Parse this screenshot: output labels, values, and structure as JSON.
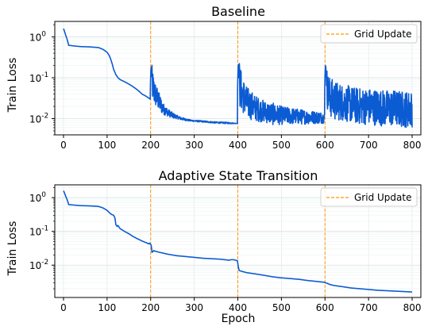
{
  "figure": {
    "background": "#ffffff",
    "line_color": "#0b5bd3",
    "grid_update_color": "#ff9900"
  },
  "chart_data": [
    {
      "type": "line",
      "title": "Baseline",
      "xlabel": "",
      "ylabel": "Train Loss",
      "xlim": [
        -20,
        820
      ],
      "ylim": [
        0.004,
        2.4
      ],
      "yscale": "log",
      "xticks": [
        0,
        100,
        200,
        300,
        400,
        500,
        600,
        700,
        800
      ],
      "xtick_labels": [
        "0",
        "100",
        "200",
        "300",
        "400",
        "500",
        "600",
        "700",
        "800"
      ],
      "yticks": [
        1,
        0.1,
        0.01
      ],
      "ytick_labels": [
        "10^0",
        "10^-1",
        "10^-2"
      ],
      "grid": true,
      "legend": {
        "position": "upper right",
        "entries": [
          "Grid Update"
        ]
      },
      "vlines": [
        200,
        400,
        600
      ],
      "series": [
        {
          "x": [
            0,
            5,
            10,
            12,
            15,
            25,
            40,
            60,
            80,
            90,
            100,
            105,
            110,
            115,
            120,
            125,
            130,
            135,
            140,
            150,
            160,
            170,
            180,
            190,
            199,
            201,
            203,
            205,
            207,
            210,
            215,
            220,
            225,
            230,
            240,
            250,
            260,
            270,
            280,
            290,
            300,
            320,
            350,
            380,
            399,
            401,
            405,
            410,
            420,
            440,
            460,
            480,
            500,
            550,
            599,
            601,
            605,
            610,
            620,
            640,
            660,
            680,
            700,
            720,
            740,
            760,
            780,
            800
          ],
          "y": [
            1.6,
            1.1,
            0.75,
            0.62,
            0.62,
            0.6,
            0.58,
            0.57,
            0.55,
            0.5,
            0.42,
            0.35,
            0.25,
            0.16,
            0.12,
            0.1,
            0.09,
            0.085,
            0.08,
            0.07,
            0.06,
            0.05,
            0.04,
            0.035,
            0.03,
            0.18,
            0.08,
            0.06,
            0.05,
            0.04,
            0.032,
            0.025,
            0.02,
            0.017,
            0.014,
            0.012,
            0.011,
            0.01,
            0.0095,
            0.009,
            0.0088,
            0.0085,
            0.008,
            0.0078,
            0.0076,
            0.2,
            0.06,
            0.04,
            0.025,
            0.018,
            0.015,
            0.013,
            0.012,
            0.011,
            0.0105,
            0.2,
            0.05,
            0.035,
            0.028,
            0.025,
            0.022,
            0.02,
            0.02,
            0.019,
            0.018,
            0.018,
            0.017,
            0.017
          ],
          "noise": [
            0,
            0,
            0,
            0,
            0,
            0,
            0,
            0,
            0,
            0,
            0,
            0,
            0,
            0,
            0,
            0,
            0,
            0,
            0,
            0,
            0,
            0,
            0,
            0,
            0,
            0,
            0.45,
            0.45,
            0.4,
            0.35,
            0.3,
            0.25,
            0.2,
            0.15,
            0.1,
            0.08,
            0.05,
            0.04,
            0.03,
            0.02,
            0.02,
            0.02,
            0.02,
            0.02,
            0,
            0,
            0.6,
            0.5,
            0.45,
            0.35,
            0.3,
            0.3,
            0.25,
            0.2,
            0.15,
            0,
            0.5,
            0.55,
            0.55,
            0.5,
            0.5,
            0.5,
            0.5,
            0.5,
            0.5,
            0.5,
            0.5,
            0.5
          ]
        }
      ]
    },
    {
      "type": "line",
      "title": "Adaptive State Transition",
      "xlabel": "Epoch",
      "ylabel": "Train Loss",
      "xlim": [
        -20,
        820
      ],
      "ylim": [
        0.0011,
        2.4
      ],
      "yscale": "log",
      "xticks": [
        0,
        100,
        200,
        300,
        400,
        500,
        600,
        700,
        800
      ],
      "xtick_labels": [
        "0",
        "100",
        "200",
        "300",
        "400",
        "500",
        "600",
        "700",
        "800"
      ],
      "yticks": [
        1,
        0.1,
        0.01
      ],
      "ytick_labels": [
        "10^0",
        "10^-1",
        "10^-2"
      ],
      "grid": true,
      "legend": {
        "position": "upper right",
        "entries": [
          "Grid Update"
        ]
      },
      "vlines": [
        200,
        400,
        600
      ],
      "series": [
        {
          "x": [
            0,
            5,
            10,
            12,
            15,
            25,
            40,
            60,
            80,
            90,
            100,
            105,
            110,
            115,
            118,
            120,
            123,
            125,
            128,
            130,
            135,
            140,
            150,
            160,
            170,
            180,
            190,
            195,
            198,
            199,
            201,
            203,
            205,
            207,
            210,
            220,
            240,
            260,
            280,
            300,
            320,
            340,
            360,
            380,
            385,
            390,
            395,
            399,
            401,
            403,
            405,
            410,
            420,
            440,
            460,
            480,
            500,
            520,
            540,
            560,
            580,
            599,
            601,
            605,
            610,
            620,
            640,
            660,
            680,
            700,
            720,
            740,
            760,
            780,
            800
          ],
          "y": [
            1.6,
            1.1,
            0.75,
            0.62,
            0.62,
            0.6,
            0.58,
            0.57,
            0.55,
            0.5,
            0.42,
            0.36,
            0.32,
            0.3,
            0.25,
            0.16,
            0.14,
            0.15,
            0.13,
            0.12,
            0.11,
            0.1,
            0.085,
            0.07,
            0.06,
            0.052,
            0.046,
            0.043,
            0.045,
            0.042,
            0.04,
            0.024,
            0.025,
            0.027,
            0.026,
            0.024,
            0.021,
            0.019,
            0.018,
            0.017,
            0.016,
            0.0155,
            0.015,
            0.014,
            0.0145,
            0.0145,
            0.014,
            0.0135,
            0.009,
            0.007,
            0.0068,
            0.0065,
            0.006,
            0.0055,
            0.005,
            0.0045,
            0.0042,
            0.004,
            0.0038,
            0.0035,
            0.0033,
            0.0031,
            0.003,
            0.0029,
            0.0027,
            0.0025,
            0.0023,
            0.0021,
            0.002,
            0.0019,
            0.0018,
            0.00175,
            0.0017,
            0.00165,
            0.0016
          ]
        }
      ]
    }
  ]
}
